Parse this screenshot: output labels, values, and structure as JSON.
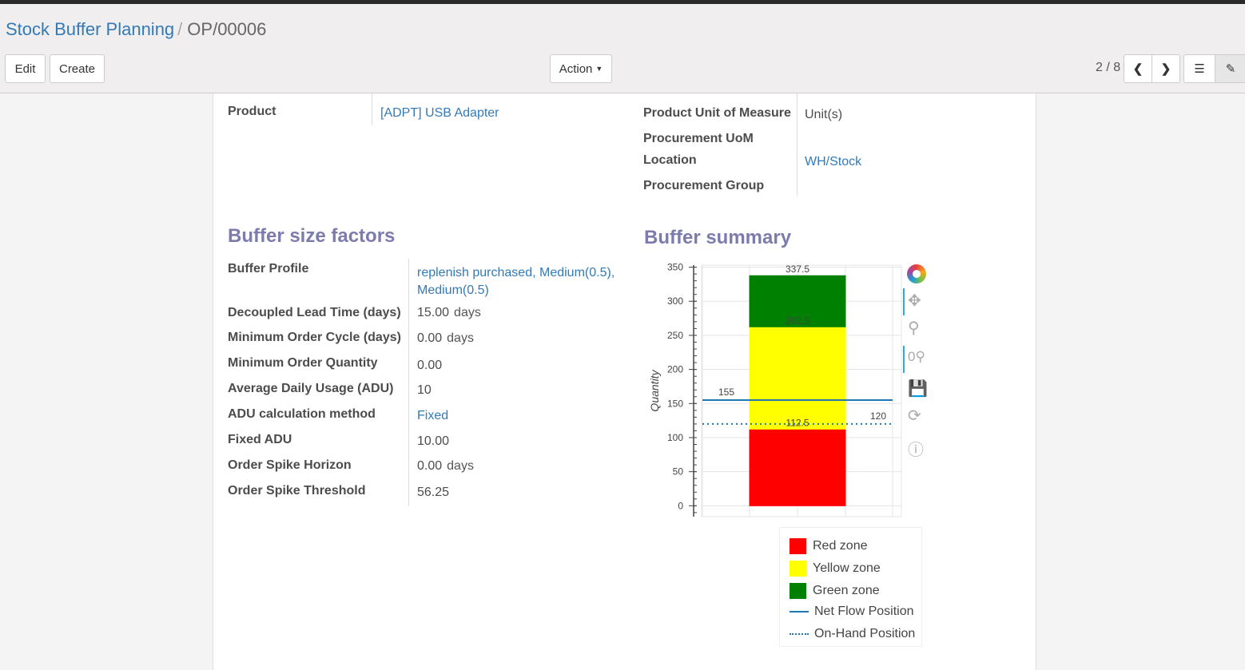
{
  "breadcrumb": {
    "parent": "Stock Buffer Planning",
    "current": "OP/00006"
  },
  "toolbar": {
    "edit": "Edit",
    "create": "Create",
    "action": "Action",
    "pager": "2 / 8"
  },
  "header_fields": {
    "product_label": "Product",
    "product_value": "[ADPT] USB Adapter",
    "uom_label": "Product Unit of Measure",
    "uom_value": "Unit(s)",
    "proc_uom_label": "Procurement UoM",
    "location_label": "Location",
    "location_value": "WH/Stock",
    "group_label": "Procurement Group"
  },
  "factors": {
    "title": "Buffer size factors",
    "rows": [
      {
        "label": "Buffer Profile",
        "value": "replenish purchased, Medium(0.5),",
        "value2": "Medium(0.5)"
      },
      {
        "label": "Decoupled Lead Time (days)",
        "value": "15.00",
        "unit": "days"
      },
      {
        "label": "Minimum Order Cycle (days)",
        "value": "0.00",
        "unit": "days"
      },
      {
        "label": "Minimum Order Quantity",
        "value": "0.00"
      },
      {
        "label": "Average Daily Usage (ADU)",
        "value": "10"
      },
      {
        "label": "ADU calculation method",
        "value": "Fixed"
      },
      {
        "label": "Fixed ADU",
        "value": "10.00"
      },
      {
        "label": "Order Spike Horizon",
        "value": "0.00",
        "unit": "days"
      },
      {
        "label": "Order Spike Threshold",
        "value": "56.25"
      }
    ]
  },
  "summary": {
    "title": "Buffer summary"
  },
  "chart_data": {
    "type": "bar",
    "ylabel": "Quantity",
    "ylim": [
      -16,
      353
    ],
    "yticks": [
      "0",
      "50",
      "100",
      "150",
      "200",
      "250",
      "300",
      "350"
    ],
    "grid": true,
    "legend_placement": "bottom",
    "stack": [
      {
        "name": "Red zone",
        "from": 0,
        "to": 112.5,
        "label": "112.5",
        "color": "#ff0000"
      },
      {
        "name": "Yellow zone",
        "from": 112.5,
        "to": 262.5,
        "label": "262.5",
        "color": "#ffff00"
      },
      {
        "name": "Green zone",
        "from": 262.5,
        "to": 337.5,
        "label": "337.5",
        "color": "#008000"
      }
    ],
    "lines": [
      {
        "name": "Net Flow Position",
        "value": 155,
        "label": "155",
        "style": "solid",
        "color": "#1f77b4"
      },
      {
        "name": "On-Hand Position",
        "value": 120,
        "label": "120",
        "style": "dotted",
        "color": "#1f77b4"
      }
    ]
  },
  "icons": [
    "bokeh-logo-icon",
    "pan-icon",
    "box-zoom-icon",
    "wheel-zoom-icon",
    "save-icon",
    "reset-icon",
    "help-icon"
  ]
}
